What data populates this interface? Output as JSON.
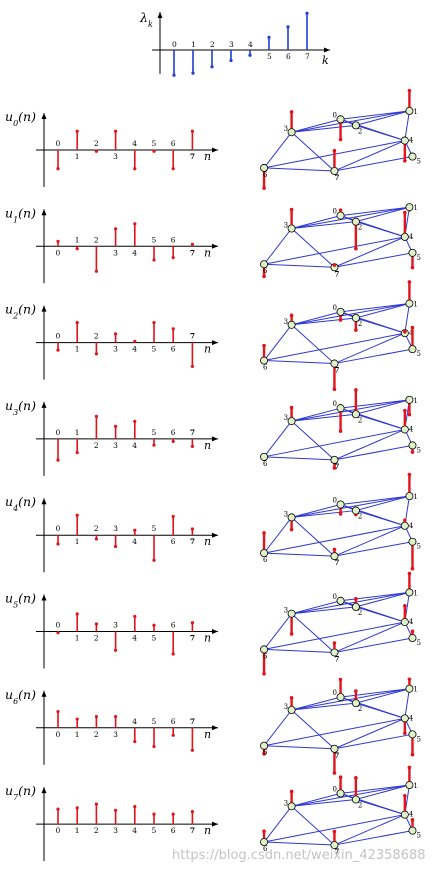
{
  "colors": {
    "eigen_stem": "#1f3fd6",
    "signal_stem": "#e0141a",
    "edge": "#2f37d3",
    "node_fill": "#dff2c8",
    "axis": "#000000"
  },
  "watermark": "https://blog.csdn.net/weixin_42358688",
  "chart_data": {
    "type": "stem",
    "eigen": {
      "ylabel": "λ_k",
      "xlabel": "k",
      "categories": [
        "0",
        "1",
        "2",
        "3",
        "4",
        "5",
        "6",
        "7"
      ],
      "values": [
        -1.2,
        -1.1,
        -0.8,
        -0.5,
        -0.25,
        0.6,
        1.1,
        1.75
      ]
    },
    "graph": {
      "nodes": [
        {
          "id": "0",
          "x": 0.52,
          "y": 0.28
        },
        {
          "id": "1",
          "x": 0.97,
          "y": 0.17
        },
        {
          "id": "2",
          "x": 0.62,
          "y": 0.36
        },
        {
          "id": "3",
          "x": 0.2,
          "y": 0.45
        },
        {
          "id": "4",
          "x": 0.94,
          "y": 0.56
        },
        {
          "id": "5",
          "x": 0.99,
          "y": 0.77
        },
        {
          "id": "6",
          "x": 0.02,
          "y": 0.92
        },
        {
          "id": "7",
          "x": 0.48,
          "y": 0.96
        }
      ],
      "edges": [
        [
          0,
          1
        ],
        [
          0,
          2
        ],
        [
          0,
          3
        ],
        [
          0,
          4
        ],
        [
          1,
          2
        ],
        [
          1,
          3
        ],
        [
          1,
          4
        ],
        [
          2,
          3
        ],
        [
          2,
          4
        ],
        [
          3,
          6
        ],
        [
          3,
          7
        ],
        [
          4,
          5
        ],
        [
          4,
          6
        ],
        [
          4,
          7
        ],
        [
          5,
          7
        ],
        [
          6,
          7
        ]
      ]
    },
    "signals": [
      {
        "ylabel": "u_0(n)",
        "xlabel": "n",
        "values": [
          -0.75,
          0.75,
          -0.05,
          0.75,
          -0.75,
          -0.05,
          -0.75,
          0.75
        ]
      },
      {
        "ylabel": "u_1(n)",
        "xlabel": "n",
        "values": [
          0.2,
          -0.1,
          -1.0,
          0.7,
          0.9,
          -0.55,
          -0.45,
          0.08
        ]
      },
      {
        "ylabel": "u_2(n)",
        "xlabel": "n",
        "values": [
          -0.3,
          0.8,
          -0.45,
          0.35,
          0.05,
          0.8,
          0.55,
          -0.95
        ]
      },
      {
        "ylabel": "u_3(n)",
        "xlabel": "n",
        "values": [
          -0.85,
          -0.55,
          0.9,
          0.5,
          0.7,
          -0.25,
          -0.1,
          -0.3
        ]
      },
      {
        "ylabel": "u_4(n)",
        "xlabel": "n",
        "values": [
          -0.35,
          0.8,
          -0.15,
          -0.45,
          0.2,
          -1.0,
          0.75,
          0.25
        ]
      },
      {
        "ylabel": "u_5(n)",
        "xlabel": "n",
        "values": [
          -0.05,
          0.7,
          0.3,
          -0.75,
          0.6,
          0.25,
          -0.9,
          0.35
        ]
      },
      {
        "ylabel": "u_6(n)",
        "xlabel": "n",
        "values": [
          0.65,
          0.35,
          0.45,
          0.45,
          -0.55,
          -0.75,
          -0.3,
          -0.9
        ]
      },
      {
        "ylabel": "u_7(n)",
        "xlabel": "n",
        "values": [
          0.6,
          0.65,
          0.8,
          0.55,
          0.7,
          0.4,
          0.4,
          0.5
        ]
      }
    ]
  }
}
